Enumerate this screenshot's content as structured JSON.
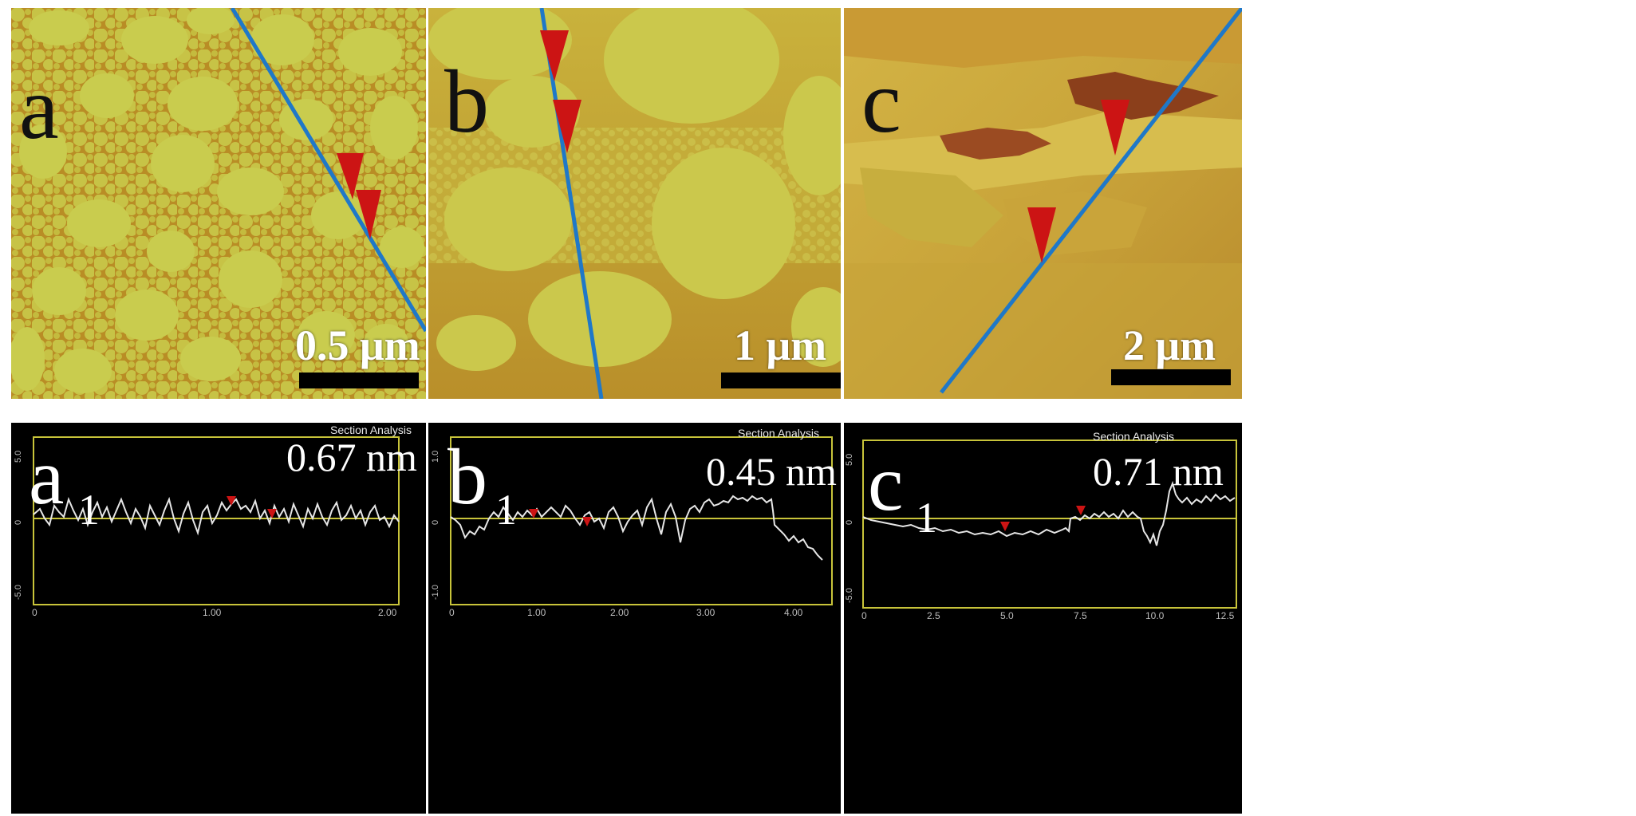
{
  "figure": {
    "colors": {
      "afm_base": "#c8b23a",
      "afm_domain": "#c9cc4e",
      "afm_dark": "#b2811e",
      "scan_line": "#1f78c8",
      "marker": "#cc1414",
      "profile_bg": "#000000",
      "profile_frame": "#c8c43a",
      "profile_trace": "#e6e6e6"
    },
    "panels": [
      {
        "letter": "a",
        "scale_label": "0.5 μm"
      },
      {
        "letter": "b",
        "scale_label": "1 μm"
      },
      {
        "letter": "c",
        "scale_label": "2 μm"
      }
    ],
    "profiles": [
      {
        "letter": "a",
        "subscript": "1",
        "height_label": "0.67 nm",
        "header": "Section Analysis",
        "y_ticks": [
          "5.0",
          "0",
          "-5.0"
        ],
        "x_ticks": [
          "0",
          "1.00",
          "2.00"
        ]
      },
      {
        "letter": "b",
        "subscript": "1",
        "height_label": "0.45 nm",
        "header": "Section Analysis",
        "y_ticks": [
          "1.0",
          "0",
          "-1.0"
        ],
        "x_ticks": [
          "0",
          "1.00",
          "2.00",
          "3.00",
          "4.00"
        ]
      },
      {
        "letter": "c",
        "subscript": "1",
        "height_label": "0.71 nm",
        "header": "Section Analysis",
        "y_ticks": [
          "5.0",
          "0",
          "-5.0"
        ],
        "x_ticks": [
          "0",
          "2.5",
          "5.0",
          "7.5",
          "10.0",
          "12.5"
        ]
      }
    ]
  }
}
